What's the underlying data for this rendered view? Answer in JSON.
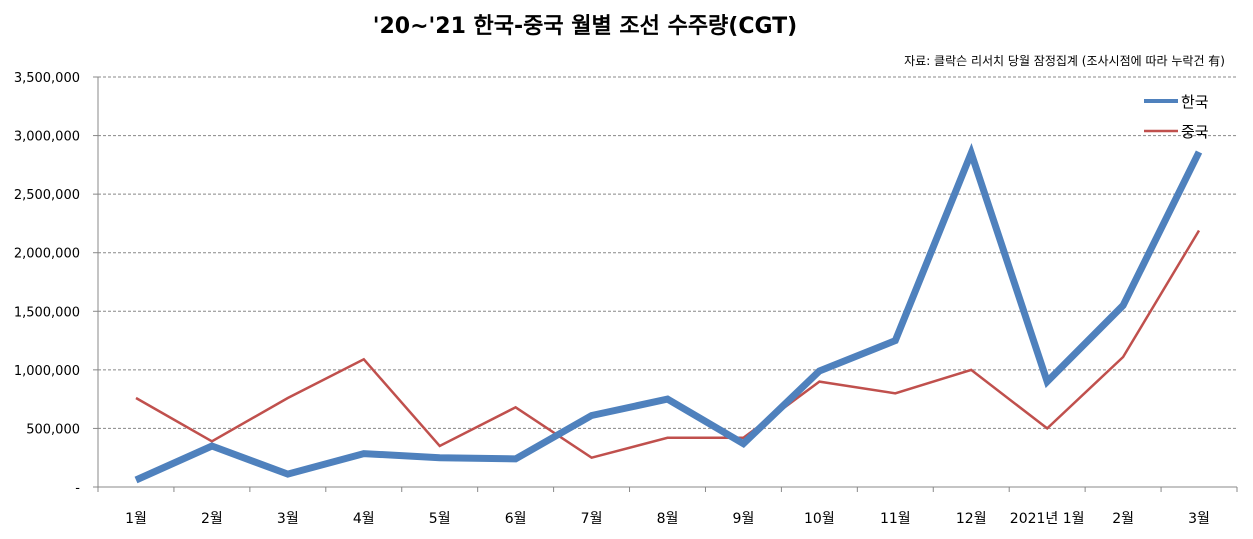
{
  "chart_data": {
    "type": "line",
    "title": "'20~'21 한국-중국 월별 조선 수주량(CGT)",
    "subtitle": "자료: 클락슨 리서치 당월 잠정집계 (조사시점에 따라 누락건 有)",
    "categories": [
      "1월",
      "2월",
      "3월",
      "4월",
      "5월",
      "6월",
      "7월",
      "8월",
      "9월",
      "10월",
      "11월",
      "12월",
      "2021년 1월",
      "2월",
      "3월"
    ],
    "series": [
      {
        "name": "한국",
        "color": "#4F81BD",
        "values": [
          60000,
          350000,
          110000,
          285000,
          250000,
          240000,
          610000,
          750000,
          370000,
          990000,
          1250000,
          2850000,
          900000,
          1550000,
          2860000
        ]
      },
      {
        "name": "중국",
        "color": "#C0504D",
        "values": [
          760000,
          390000,
          760000,
          1090000,
          350000,
          680000,
          250000,
          420000,
          420000,
          900000,
          800000,
          1000000,
          500000,
          1110000,
          2190000
        ]
      }
    ],
    "yticks": [
      "-",
      "500,000",
      "1,000,000",
      "1,500,000",
      "2,000,000",
      "2,500,000",
      "3,000,000",
      "3,500,000"
    ],
    "ylim": [
      0,
      3500000
    ],
    "grid": true,
    "legend": "top-right"
  }
}
